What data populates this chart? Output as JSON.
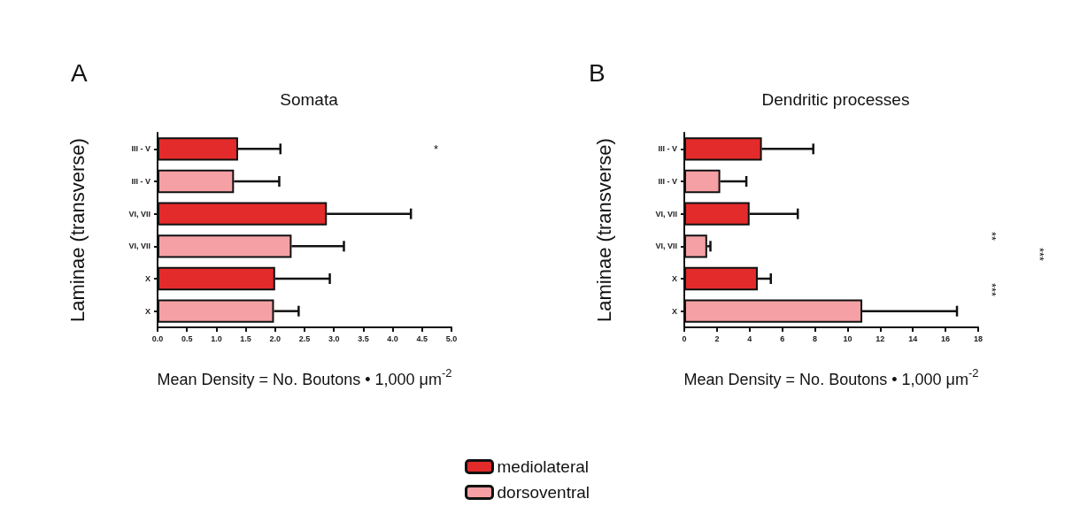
{
  "chart_data": [
    {
      "type": "bar",
      "orientation": "horizontal",
      "title": "Somata",
      "xlabel": "Mean Density = No. Boutons • 1,000 μm$^{-2}$",
      "ylabel": "Laminae (transverse)",
      "categories": [
        "III - V",
        "III - V",
        "VI, VII",
        "VI, VII",
        "X",
        "X"
      ],
      "series": [
        {
          "name": "mediolateral",
          "color": "#e32b2b",
          "values": [
            1.37,
            null,
            2.88,
            null,
            2.0,
            null
          ],
          "errors": [
            [
              1.37,
              2.09
            ],
            null,
            [
              2.88,
              4.31
            ],
            null,
            [
              2.0,
              2.93
            ],
            null
          ]
        },
        {
          "name": "dorsoventral",
          "color": "#f4a0a4",
          "values": [
            null,
            1.3,
            null,
            2.28,
            null,
            1.98
          ],
          "errors": [
            null,
            [
              1.3,
              2.07
            ],
            null,
            [
              2.28,
              3.17
            ],
            null,
            [
              1.98,
              2.4
            ]
          ]
        }
      ],
      "xlim": [
        0,
        5
      ],
      "xticks": [
        {
          "value": 0,
          "label": "0.0"
        },
        0.5,
        {
          "value": 1,
          "label": "1.0"
        },
        1.5,
        {
          "value": 2,
          "label": "2.0"
        },
        2.5,
        {
          "value": 3,
          "label": "3.0"
        },
        3.5,
        {
          "value": 4,
          "label": "4.0"
        },
        4.5,
        {
          "value": 5,
          "label": "5.0"
        }
      ],
      "annotations": [
        "A",
        "*"
      ],
      "legend": "bottom",
      "grid": false
    },
    {
      "type": "bar",
      "orientation": "horizontal",
      "title": "Dendritic processes",
      "xlabel": "Mean Density = No. Boutons • 1,000 μm$^{-2}$",
      "ylabel": "Laminae (transverse)",
      "categories": [
        "III - V",
        "III - V",
        "VI, VII",
        "VI, VII",
        "X",
        "X"
      ],
      "series": [
        {
          "color": "#e32b2b",
          "values": [
            4.75,
            null,
            4.0,
            null,
            4.5,
            null
          ],
          "errors": [
            [
              4.75,
              7.9
            ],
            null,
            [
              4.0,
              6.95
            ],
            null,
            [
              4.5,
              5.3
            ],
            null
          ]
        },
        {
          "color": "#f4a0a4",
          "values": [
            null,
            2.2,
            null,
            1.4,
            null,
            10.9
          ],
          "errors": [
            null,
            [
              2.2,
              3.8
            ],
            null,
            [
              1.4,
              1.6
            ],
            null,
            [
              10.9,
              16.7
            ]
          ]
        }
      ],
      "xlim": [
        0,
        18
      ],
      "xticks": [
        0,
        2,
        4,
        6,
        8,
        10,
        12,
        14,
        16,
        18
      ],
      "annotations": [
        "B",
        "**",
        "***",
        "***"
      ],
      "legend": false,
      "grid": false
    }
  ]
}
